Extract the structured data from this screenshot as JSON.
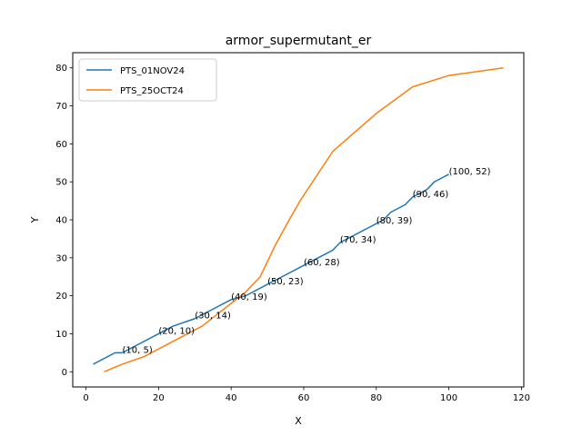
{
  "chart_data": {
    "type": "line",
    "title": "armor_supermutant_er",
    "xlabel": "X",
    "ylabel": "Y",
    "xlim": [
      -3.65,
      120.65
    ],
    "ylim": [
      -4.0,
      84.0
    ],
    "xticks": [
      0,
      20,
      40,
      60,
      80,
      100,
      120
    ],
    "yticks": [
      0,
      10,
      20,
      30,
      40,
      50,
      60,
      70,
      80
    ],
    "grid": false,
    "legend_position": "top-left",
    "series": [
      {
        "name": "PTS_01NOV24",
        "color": "#1f77b4",
        "x": [
          2,
          8,
          10,
          14,
          20,
          24,
          30,
          34,
          40,
          44,
          50,
          54,
          60,
          64,
          68,
          70,
          74,
          78,
          80,
          82,
          84,
          88,
          90,
          92,
          94,
          96,
          98,
          100
        ],
        "y": [
          2,
          5,
          5,
          7,
          10,
          12,
          14,
          16,
          19,
          20,
          23,
          25,
          28,
          30,
          32,
          34,
          36,
          38,
          39,
          40,
          42,
          44,
          46,
          47,
          48,
          50,
          51,
          52
        ]
      },
      {
        "name": "PTS_25OCT24",
        "color": "#ff7f0e",
        "x": [
          5,
          10,
          16,
          20,
          24,
          28,
          32,
          36,
          40,
          44,
          48,
          52,
          56,
          59,
          68,
          80,
          90,
          100,
          115
        ],
        "y": [
          0,
          2,
          4,
          6,
          8,
          10,
          12,
          15,
          18,
          21,
          25,
          33,
          40,
          45,
          58,
          68,
          75,
          78,
          80
        ]
      }
    ],
    "annotations": [
      {
        "x": 10,
        "y": 5,
        "text": "(10, 5)"
      },
      {
        "x": 20,
        "y": 10,
        "text": "(20, 10)"
      },
      {
        "x": 30,
        "y": 14,
        "text": "(30, 14)"
      },
      {
        "x": 40,
        "y": 19,
        "text": "(40, 19)"
      },
      {
        "x": 50,
        "y": 23,
        "text": "(50, 23)"
      },
      {
        "x": 60,
        "y": 28,
        "text": "(60, 28)"
      },
      {
        "x": 70,
        "y": 34,
        "text": "(70, 34)"
      },
      {
        "x": 80,
        "y": 39,
        "text": "(80, 39)"
      },
      {
        "x": 90,
        "y": 46,
        "text": "(90, 46)"
      },
      {
        "x": 100,
        "y": 52,
        "text": "(100, 52)"
      }
    ]
  }
}
